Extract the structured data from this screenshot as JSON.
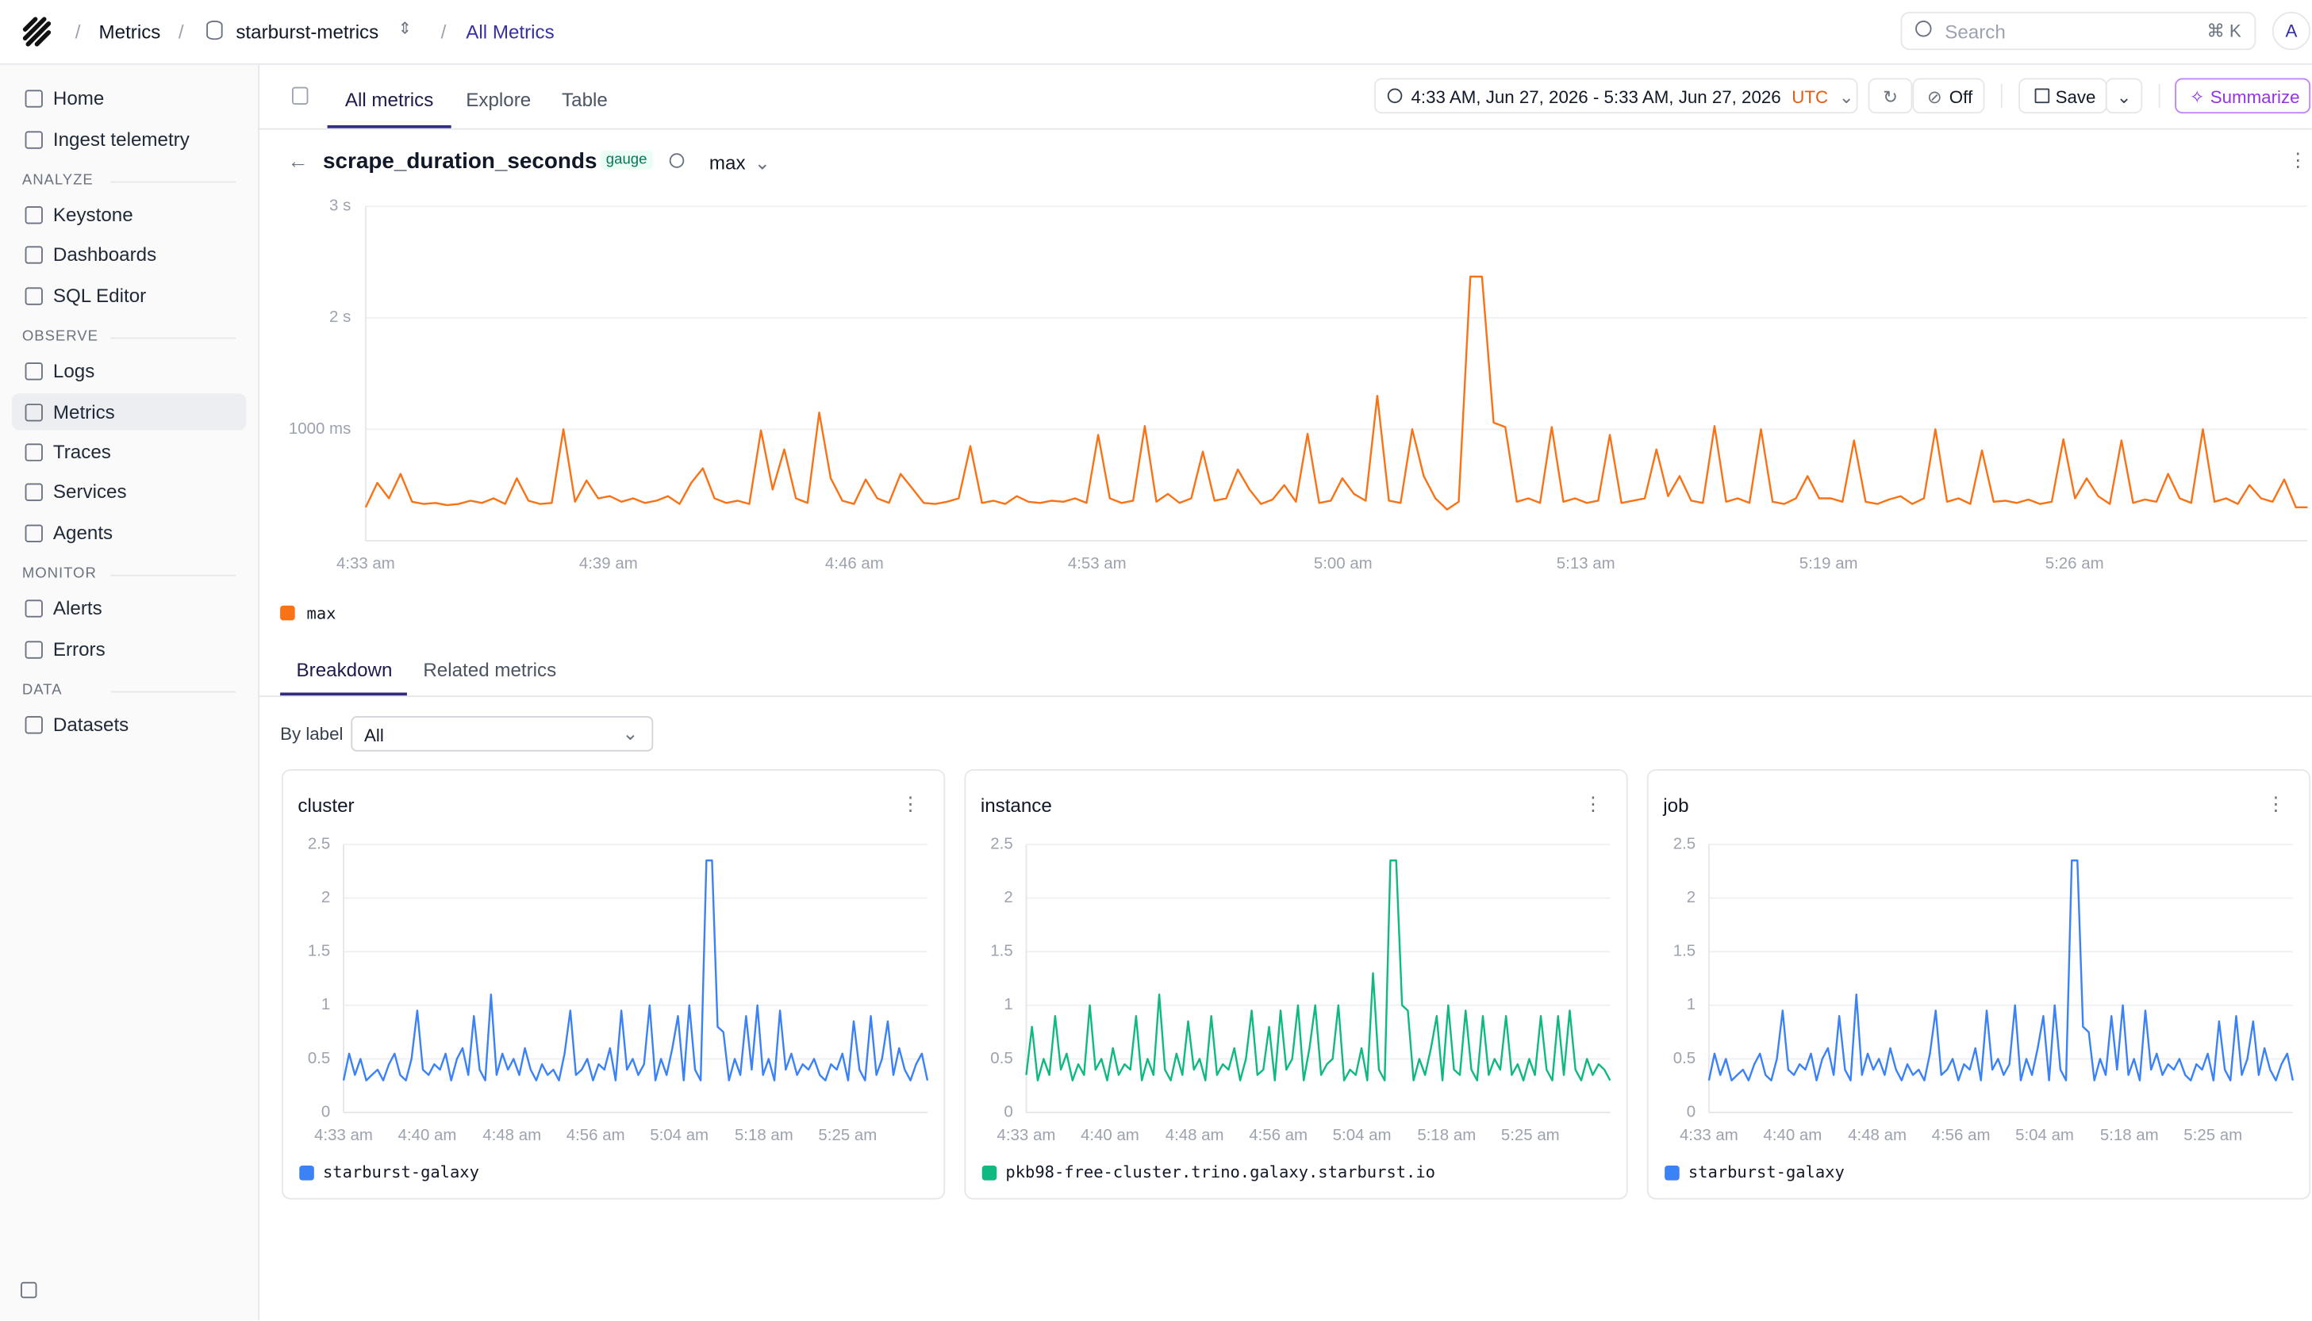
{
  "breadcrumb": [
    "Metrics",
    "starburst-metrics",
    "All Metrics"
  ],
  "search": {
    "placeholder": "Search",
    "shortcut": "⌘ K"
  },
  "avatar": "A",
  "sidebar": {
    "top": [
      "Home",
      "Ingest telemetry"
    ],
    "sections": [
      {
        "title": "ANALYZE",
        "items": [
          "Keystone",
          "Dashboards",
          "SQL Editor"
        ]
      },
      {
        "title": "OBSERVE",
        "items": [
          "Logs",
          "Metrics",
          "Traces",
          "Services",
          "Agents"
        ]
      },
      {
        "title": "MONITOR",
        "items": [
          "Alerts",
          "Errors"
        ]
      },
      {
        "title": "DATA",
        "items": [
          "Datasets"
        ]
      }
    ]
  },
  "tabs": [
    "All metrics",
    "Explore",
    "Table"
  ],
  "time_range": {
    "text": "4:33 AM, Jun 27, 2026 - 5:33 AM, Jun 27, 2026",
    "timezone": "UTC"
  },
  "refresh": "Off",
  "save": "Save",
  "summarize": "Summarize",
  "metric": {
    "name": "scrape_duration_seconds",
    "kind": "gauge",
    "aggregation": "max"
  },
  "main_chart": {
    "type": "line",
    "ylim": [
      0,
      3000
    ],
    "yticks": [
      {
        "value": 1000,
        "label": "1000 ms"
      },
      {
        "value": 2000,
        "label": "2 s"
      },
      {
        "value": 3000,
        "label": "3 s"
      }
    ],
    "xlim": [
      0,
      60
    ],
    "xticks": [
      {
        "value": 0,
        "label": "4:33 am"
      },
      {
        "value": 7.5,
        "label": "4:39 am"
      },
      {
        "value": 15.1,
        "label": "4:46 am"
      },
      {
        "value": 22.6,
        "label": "4:53 am"
      },
      {
        "value": 30.2,
        "label": "5:00 am"
      },
      {
        "value": 37.7,
        "label": "5:13 am"
      },
      {
        "value": 45.2,
        "label": "5:19 am"
      },
      {
        "value": 52.8,
        "label": "5:26 am"
      }
    ],
    "series": [
      {
        "name": "max",
        "color": "#f97316",
        "values": [
          300,
          520,
          380,
          600,
          350,
          330,
          340,
          320,
          330,
          360,
          340,
          380,
          330,
          560,
          360,
          330,
          340,
          1000,
          350,
          540,
          380,
          400,
          350,
          380,
          340,
          360,
          400,
          330,
          520,
          650,
          380,
          340,
          360,
          330,
          990,
          460,
          820,
          380,
          340,
          1150,
          560,
          360,
          330,
          550,
          380,
          340,
          600,
          470,
          340,
          330,
          350,
          380,
          850,
          340,
          360,
          330,
          400,
          350,
          340,
          360,
          350,
          380,
          340,
          950,
          380,
          340,
          360,
          1030,
          350,
          420,
          340,
          380,
          800,
          360,
          380,
          640,
          460,
          330,
          370,
          500,
          350,
          960,
          340,
          360,
          560,
          420,
          360,
          1300,
          360,
          340,
          1000,
          580,
          380,
          280,
          350,
          2370,
          2370,
          1060,
          1020,
          350,
          380,
          340,
          1020,
          350,
          380,
          340,
          360,
          950,
          340,
          360,
          380,
          820,
          400,
          580,
          360,
          340,
          1030,
          350,
          380,
          340,
          1000,
          350,
          330,
          380,
          580,
          380,
          380,
          350,
          900,
          350,
          330,
          370,
          400,
          330,
          380,
          1000,
          350,
          380,
          330,
          810,
          350,
          360,
          340,
          370,
          330,
          350,
          910,
          380,
          560,
          400,
          330,
          900,
          340,
          370,
          350,
          600,
          380,
          340,
          1000,
          350,
          380,
          330,
          500,
          380,
          350,
          550,
          300,
          300
        ]
      }
    ]
  },
  "breakdown_tabs": [
    "Breakdown",
    "Related metrics"
  ],
  "by_label": {
    "label": "By label",
    "value": "All"
  },
  "breakdowns": [
    {
      "title": "cluster",
      "type": "line",
      "ylim": [
        0,
        2.5
      ],
      "yticks": [
        0,
        0.5,
        1,
        1.5,
        2,
        2.5
      ],
      "xlim": [
        0,
        60
      ],
      "xticks": [
        {
          "value": 0,
          "label": "4:33 am"
        },
        {
          "value": 8.6,
          "label": "4:40 am"
        },
        {
          "value": 17.3,
          "label": "4:48 am"
        },
        {
          "value": 25.9,
          "label": "4:56 am"
        },
        {
          "value": 34.5,
          "label": "5:04 am"
        },
        {
          "value": 43.2,
          "label": "5:18 am"
        },
        {
          "value": 51.8,
          "label": "5:25 am"
        }
      ],
      "series": [
        {
          "name": "starburst-galaxy",
          "color": "#3b82f6",
          "values": [
            0.3,
            0.55,
            0.35,
            0.5,
            0.3,
            0.35,
            0.4,
            0.3,
            0.45,
            0.55,
            0.35,
            0.3,
            0.5,
            0.95,
            0.4,
            0.35,
            0.45,
            0.4,
            0.55,
            0.3,
            0.5,
            0.6,
            0.35,
            0.9,
            0.4,
            0.3,
            1.1,
            0.35,
            0.55,
            0.4,
            0.5,
            0.35,
            0.6,
            0.4,
            0.3,
            0.45,
            0.35,
            0.4,
            0.3,
            0.55,
            0.95,
            0.35,
            0.4,
            0.5,
            0.3,
            0.45,
            0.4,
            0.6,
            0.3,
            0.95,
            0.4,
            0.5,
            0.35,
            0.45,
            1.0,
            0.3,
            0.5,
            0.35,
            0.6,
            0.9,
            0.3,
            1.0,
            0.4,
            0.3,
            2.35,
            2.35,
            0.8,
            0.75,
            0.3,
            0.5,
            0.35,
            0.9,
            0.4,
            1.0,
            0.35,
            0.5,
            0.3,
            0.95,
            0.4,
            0.55,
            0.35,
            0.45,
            0.4,
            0.5,
            0.35,
            0.3,
            0.45,
            0.4,
            0.55,
            0.3,
            0.85,
            0.4,
            0.3,
            0.9,
            0.35,
            0.5,
            0.85,
            0.35,
            0.6,
            0.4,
            0.3,
            0.45,
            0.55,
            0.3
          ]
        }
      ]
    },
    {
      "title": "instance",
      "type": "line",
      "ylim": [
        0,
        2.5
      ],
      "yticks": [
        0,
        0.5,
        1,
        1.5,
        2,
        2.5
      ],
      "xlim": [
        0,
        60
      ],
      "xticks": [
        {
          "value": 0,
          "label": "4:33 am"
        },
        {
          "value": 8.6,
          "label": "4:40 am"
        },
        {
          "value": 17.3,
          "label": "4:48 am"
        },
        {
          "value": 25.9,
          "label": "4:56 am"
        },
        {
          "value": 34.5,
          "label": "5:04 am"
        },
        {
          "value": 43.2,
          "label": "5:18 am"
        },
        {
          "value": 51.8,
          "label": "5:25 am"
        }
      ],
      "series": [
        {
          "name": "pkb98-free-cluster.trino.galaxy.starburst.io",
          "color": "#10b981",
          "values": [
            0.35,
            0.8,
            0.3,
            0.5,
            0.35,
            0.9,
            0.4,
            0.55,
            0.3,
            0.45,
            0.35,
            1.0,
            0.4,
            0.5,
            0.3,
            0.6,
            0.35,
            0.45,
            0.4,
            0.9,
            0.3,
            0.5,
            0.35,
            1.1,
            0.4,
            0.3,
            0.55,
            0.35,
            0.85,
            0.4,
            0.5,
            0.3,
            0.9,
            0.35,
            0.45,
            0.4,
            0.6,
            0.3,
            0.5,
            0.95,
            0.35,
            0.4,
            0.8,
            0.3,
            0.95,
            0.4,
            0.5,
            1.0,
            0.3,
            0.6,
            1.0,
            0.35,
            0.45,
            0.5,
            1.0,
            0.3,
            0.4,
            0.35,
            0.6,
            0.3,
            1.3,
            0.4,
            0.3,
            2.35,
            2.35,
            1.0,
            0.95,
            0.3,
            0.5,
            0.35,
            0.6,
            0.9,
            0.3,
            1.0,
            0.4,
            0.35,
            0.95,
            0.4,
            0.3,
            0.9,
            0.35,
            0.5,
            0.4,
            0.9,
            0.35,
            0.45,
            0.3,
            0.5,
            0.35,
            0.9,
            0.4,
            0.3,
            0.9,
            0.35,
            0.95,
            0.4,
            0.3,
            0.5,
            0.35,
            0.45,
            0.4,
            0.3
          ]
        }
      ]
    },
    {
      "title": "job",
      "type": "line",
      "ylim": [
        0,
        2.5
      ],
      "yticks": [
        0,
        0.5,
        1,
        1.5,
        2,
        2.5
      ],
      "xlim": [
        0,
        60
      ],
      "xticks": [
        {
          "value": 0,
          "label": "4:33 am"
        },
        {
          "value": 8.6,
          "label": "4:40 am"
        },
        {
          "value": 17.3,
          "label": "4:48 am"
        },
        {
          "value": 25.9,
          "label": "4:56 am"
        },
        {
          "value": 34.5,
          "label": "5:04 am"
        },
        {
          "value": 43.2,
          "label": "5:18 am"
        },
        {
          "value": 51.8,
          "label": "5:25 am"
        }
      ],
      "series": [
        {
          "name": "starburst-galaxy",
          "color": "#3b82f6",
          "values": [
            0.3,
            0.55,
            0.35,
            0.5,
            0.3,
            0.35,
            0.4,
            0.3,
            0.45,
            0.55,
            0.35,
            0.3,
            0.5,
            0.95,
            0.4,
            0.35,
            0.45,
            0.4,
            0.55,
            0.3,
            0.5,
            0.6,
            0.35,
            0.9,
            0.4,
            0.3,
            1.1,
            0.35,
            0.55,
            0.4,
            0.5,
            0.35,
            0.6,
            0.4,
            0.3,
            0.45,
            0.35,
            0.4,
            0.3,
            0.55,
            0.95,
            0.35,
            0.4,
            0.5,
            0.3,
            0.45,
            0.4,
            0.6,
            0.3,
            0.95,
            0.4,
            0.5,
            0.35,
            0.45,
            1.0,
            0.3,
            0.5,
            0.35,
            0.6,
            0.9,
            0.3,
            1.0,
            0.4,
            0.3,
            2.35,
            2.35,
            0.8,
            0.75,
            0.3,
            0.5,
            0.35,
            0.9,
            0.4,
            1.0,
            0.35,
            0.5,
            0.3,
            0.95,
            0.4,
            0.55,
            0.35,
            0.45,
            0.4,
            0.5,
            0.35,
            0.3,
            0.45,
            0.4,
            0.55,
            0.3,
            0.85,
            0.4,
            0.3,
            0.9,
            0.35,
            0.5,
            0.85,
            0.35,
            0.6,
            0.4,
            0.3,
            0.45,
            0.55,
            0.3
          ]
        }
      ]
    }
  ]
}
